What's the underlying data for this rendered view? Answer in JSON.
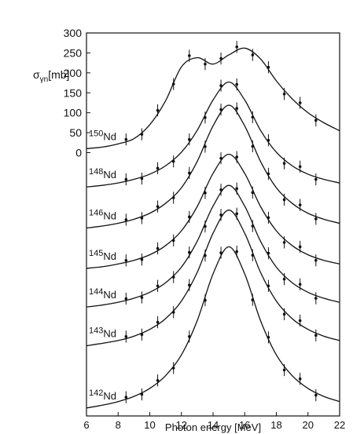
{
  "chart_data": {
    "type": "line",
    "ylabel": {
      "symbol": "σ",
      "subscript": "γn",
      "unit": "[mb]"
    },
    "xlabel": "Photon energy [MeV]",
    "xlim": [
      6,
      22
    ],
    "xticks": [
      6,
      8,
      10,
      12,
      14,
      16,
      18,
      20,
      22
    ],
    "ylim": [
      -660,
      300
    ],
    "yticks": [
      0,
      50,
      100,
      150,
      200,
      250,
      300
    ],
    "x": [
      6,
      7,
      8,
      9,
      10,
      11,
      12,
      13,
      14,
      15,
      16,
      17,
      18,
      19,
      20,
      21,
      22
    ],
    "x_points": [
      8.5,
      9.5,
      10.5,
      11.5,
      12.5,
      13.5,
      14.5,
      15.5,
      16.5,
      17.5,
      18.5,
      19.5,
      20.5
    ],
    "series": [
      {
        "mass": "150",
        "element": "Nd",
        "color": "#111111",
        "error": 15,
        "fit": [
          10,
          14,
          22,
          35,
          70,
          130,
          215,
          238,
          222,
          245,
          262,
          235,
          180,
          135,
          100,
          75,
          55
        ],
        "points": [
          33,
          46,
          106,
          172,
          243,
          222,
          236,
          265,
          245,
          214,
          147,
          125,
          81
        ]
      },
      {
        "mass": "148",
        "element": "Nd",
        "color": "#111111",
        "error": 15,
        "fit": [
          -86,
          -82,
          -76,
          -67,
          -54,
          -33,
          1,
          56,
          132,
          177,
          132,
          56,
          1,
          -33,
          -54,
          -67,
          -76
        ],
        "points": [
          -67,
          -65,
          -39,
          -22,
          33,
          88,
          168,
          171,
          89,
          31,
          -27,
          -35,
          -67
        ]
      },
      {
        "mass": "146",
        "element": "Nd",
        "color": "#111111",
        "error": 15,
        "fit": [
          -189,
          -184,
          -177,
          -167,
          -152,
          -127,
          -88,
          -22,
          67,
          119,
          67,
          -22,
          -88,
          -127,
          -152,
          -167,
          -177
        ],
        "points": [
          -168,
          -164,
          -135,
          -113,
          -51,
          15,
          108,
          111,
          16,
          -53,
          -118,
          -131,
          -166
        ]
      },
      {
        "mass": "145",
        "element": "Nd",
        "color": "#111111",
        "error": 15,
        "fit": [
          -290,
          -286,
          -279,
          -270,
          -256,
          -233,
          -196,
          -135,
          -52,
          -4,
          -52,
          -135,
          -196,
          -233,
          -256,
          -270,
          -279
        ],
        "points": [
          -270,
          -268,
          -240,
          -220,
          -161,
          -101,
          -14,
          -11,
          -100,
          -163,
          -225,
          -236,
          -270
        ]
      },
      {
        "mass": "144",
        "element": "Nd",
        "color": "#111111",
        "error": 15,
        "fit": [
          -387,
          -382,
          -375,
          -365,
          -350,
          -326,
          -287,
          -222,
          -134,
          -82,
          -134,
          -222,
          -287,
          -326,
          -350,
          -365,
          -375
        ],
        "points": [
          -366,
          -363,
          -334,
          -312,
          -250,
          -185,
          -93,
          -90,
          -184,
          -252,
          -317,
          -330,
          -365
        ]
      },
      {
        "mass": "143",
        "element": "Nd",
        "color": "#111111",
        "error": 15,
        "fit": [
          -484,
          -478,
          -471,
          -460,
          -443,
          -416,
          -372,
          -300,
          -202,
          -144,
          -202,
          -300,
          -372,
          -416,
          -443,
          -460,
          -471
        ],
        "points": [
          -461,
          -456,
          -425,
          -400,
          -332,
          -258,
          -156,
          -153,
          -257,
          -334,
          -405,
          -421,
          -458
        ]
      },
      {
        "mass": "142",
        "element": "Nd",
        "color": "#111111",
        "error": 15,
        "fit": [
          -640,
          -633,
          -624,
          -611,
          -591,
          -559,
          -507,
          -421,
          -304,
          -236,
          -304,
          -421,
          -507,
          -559,
          -591,
          -611,
          -624
        ],
        "points": [
          -613,
          -606,
          -571,
          -540,
          -461,
          -370,
          -251,
          -248,
          -369,
          -463,
          -545,
          -567,
          -608
        ]
      }
    ]
  }
}
